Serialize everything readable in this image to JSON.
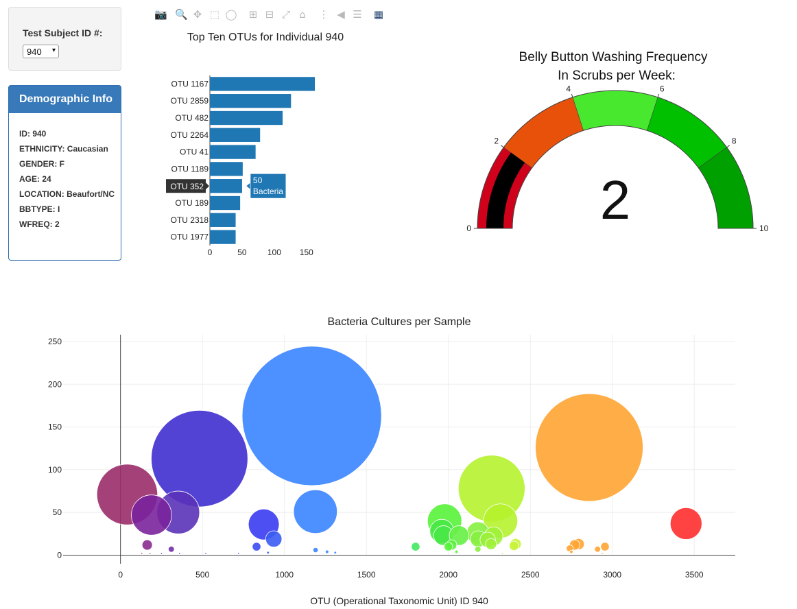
{
  "selector": {
    "label": "Test Subject ID #:",
    "value": "940"
  },
  "demographics": {
    "title": "Demographic Info",
    "lines": [
      "ID: 940",
      "ETHNICITY: Caucasian",
      "GENDER: F",
      "AGE: 24",
      "LOCATION: Beaufort/NC",
      "BBTYPE: I",
      "WFREQ: 2"
    ]
  },
  "modebar": {
    "icons": [
      "camera-icon",
      "zoom-icon",
      "pan-icon",
      "box-select-icon",
      "lasso-icon",
      "zoom-in-icon",
      "zoom-out-icon",
      "autoscale-icon",
      "reset-axes-icon",
      "spike-lines-icon",
      "hover-closest-icon",
      "hover-compare-icon",
      "plotly-logo-icon"
    ]
  },
  "chart_data": [
    {
      "type": "bar",
      "orientation": "horizontal",
      "title": "Top Ten OTUs for Individual 940",
      "categories": [
        "OTU 1167",
        "OTU 2859",
        "OTU 482",
        "OTU 2264",
        "OTU 41",
        "OTU 1189",
        "OTU 352",
        "OTU 189",
        "OTU 2318",
        "OTU 1977"
      ],
      "values": [
        163,
        126,
        113,
        78,
        71,
        51,
        50,
        47,
        40,
        40
      ],
      "xticks": [
        0,
        50,
        100,
        150
      ],
      "xlim": [
        0,
        163
      ],
      "color": "#1f77b4",
      "tooltip": {
        "category": "OTU 352",
        "value_label": "50",
        "text_label": "Bacteria"
      }
    },
    {
      "type": "gauge",
      "title_lines": [
        "Belly Button Washing Frequency",
        "In Scrubs per Week:"
      ],
      "value": 2,
      "range": [
        0,
        10
      ],
      "ticks": [
        0,
        2,
        4,
        6,
        8,
        10
      ],
      "steps": [
        {
          "range": [
            0,
            2
          ],
          "color": "#d0021b"
        },
        {
          "range": [
            2,
            4
          ],
          "color": "#e8510a"
        },
        {
          "range": [
            4,
            6
          ],
          "color": "#47e82e"
        },
        {
          "range": [
            6,
            8
          ],
          "color": "#00c000"
        },
        {
          "range": [
            8,
            10
          ],
          "color": "#00a000"
        }
      ],
      "bar_color": "#000000"
    },
    {
      "type": "scatter",
      "title": "Bacteria Cultures per Sample",
      "xlabel": "OTU (Operational Taxonomic Unit) ID 940",
      "xlim": [
        -350,
        3750
      ],
      "ylim": [
        -10,
        258
      ],
      "xticks": [
        0,
        500,
        1000,
        1500,
        2000,
        2500,
        3000,
        3500
      ],
      "yticks": [
        0,
        50,
        100,
        150,
        200,
        250
      ],
      "grid": true,
      "points": [
        {
          "x": 1167,
          "y": 163,
          "color": "#3a84ff"
        },
        {
          "x": 2859,
          "y": 126,
          "color": "#ffa533"
        },
        {
          "x": 482,
          "y": 113,
          "color": "#3f2fcf"
        },
        {
          "x": 41,
          "y": 71,
          "color": "#9b2c6a"
        },
        {
          "x": 2264,
          "y": 78,
          "color": "#b6f22d"
        },
        {
          "x": 189,
          "y": 47,
          "color": "#7a249c"
        },
        {
          "x": 352,
          "y": 50,
          "color": "#5a32b8"
        },
        {
          "x": 1189,
          "y": 51,
          "color": "#3a84ff"
        },
        {
          "x": 2318,
          "y": 40,
          "color": "#b6f22d"
        },
        {
          "x": 1977,
          "y": 40,
          "color": "#58f23a"
        },
        {
          "x": 3450,
          "y": 37,
          "color": "#ff2d2d"
        },
        {
          "x": 874,
          "y": 36,
          "color": "#3a3cf2"
        },
        {
          "x": 1960,
          "y": 28,
          "color": "#48e846"
        },
        {
          "x": 1970,
          "y": 23,
          "color": "#48e846"
        },
        {
          "x": 2065,
          "y": 23,
          "color": "#66f046"
        },
        {
          "x": 2180,
          "y": 26,
          "color": "#86f040"
        },
        {
          "x": 2183,
          "y": 19,
          "color": "#86f040"
        },
        {
          "x": 2240,
          "y": 18,
          "color": "#9bf03a"
        },
        {
          "x": 2275,
          "y": 22,
          "color": "#a0f23a"
        },
        {
          "x": 2260,
          "y": 13,
          "color": "#a0f23a"
        },
        {
          "x": 2020,
          "y": 12,
          "color": "#5af040"
        },
        {
          "x": 2410,
          "y": 13,
          "color": "#c8f23a"
        },
        {
          "x": 2400,
          "y": 11,
          "color": "#c8f23a"
        },
        {
          "x": 935,
          "y": 19,
          "color": "#3a5cf2"
        },
        {
          "x": 163,
          "y": 12,
          "color": "#8a2c8f"
        },
        {
          "x": 310,
          "y": 7,
          "color": "#7030a8"
        },
        {
          "x": 830,
          "y": 10,
          "color": "#3a4cf2"
        },
        {
          "x": 1800,
          "y": 10,
          "color": "#40e860"
        },
        {
          "x": 2795,
          "y": 13,
          "color": "#ffa533"
        },
        {
          "x": 2770,
          "y": 12,
          "color": "#ffa533"
        },
        {
          "x": 2740,
          "y": 8,
          "color": "#ffa533"
        },
        {
          "x": 2955,
          "y": 10,
          "color": "#ffa533"
        },
        {
          "x": 2910,
          "y": 7,
          "color": "#ffa533"
        },
        {
          "x": 2000,
          "y": 10,
          "color": "#58f23a"
        },
        {
          "x": 2180,
          "y": 7,
          "color": "#86f040"
        },
        {
          "x": 1190,
          "y": 6,
          "color": "#3a84ff"
        },
        {
          "x": 1260,
          "y": 4,
          "color": "#3a84ff"
        },
        {
          "x": 1310,
          "y": 3,
          "color": "#3a84ff"
        },
        {
          "x": 130,
          "y": 2,
          "color": "#9b2c6a"
        },
        {
          "x": 180,
          "y": 2,
          "color": "#8a2c8f"
        },
        {
          "x": 250,
          "y": 2,
          "color": "#7a249c"
        },
        {
          "x": 360,
          "y": 2,
          "color": "#5a32b8"
        },
        {
          "x": 520,
          "y": 2,
          "color": "#3f2fcf"
        },
        {
          "x": 720,
          "y": 2,
          "color": "#3a3cf2"
        },
        {
          "x": 900,
          "y": 3,
          "color": "#3a5cf2"
        },
        {
          "x": 2050,
          "y": 4,
          "color": "#66f046"
        },
        {
          "x": 2330,
          "y": 2,
          "color": "#b6f22d"
        },
        {
          "x": 2750,
          "y": 4,
          "color": "#ffa533"
        },
        {
          "x": 2940,
          "y": 2,
          "color": "#ffa533"
        }
      ]
    }
  ]
}
